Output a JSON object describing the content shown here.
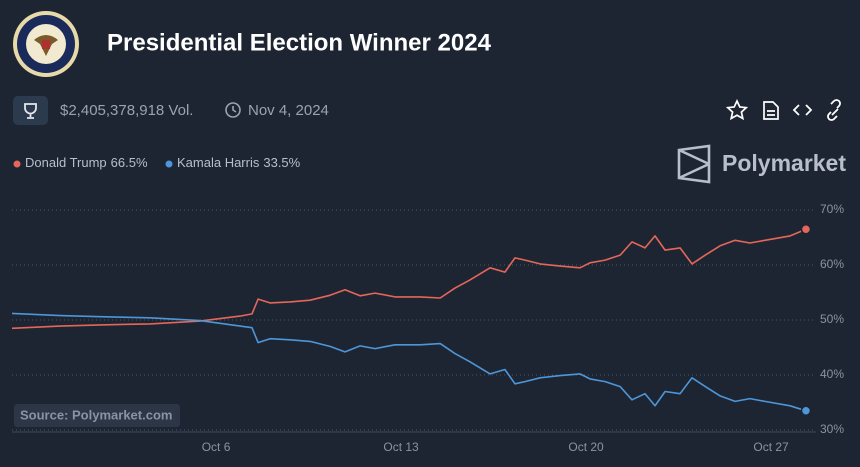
{
  "header": {
    "title": "Presidential Election Winner 2024",
    "volume": "$2,405,378,918 Vol.",
    "date": "Nov 4, 2024",
    "brand": "Polymarket"
  },
  "chart_data": {
    "type": "line",
    "source": "Source: Polymarket.com",
    "x": [
      -1.72,
      0.1,
      1.61,
      3.5,
      5.39,
      6.91,
      7.36,
      7.59,
      8.04,
      8.8,
      9.56,
      10.31,
      10.88,
      11.45,
      12.02,
      12.77,
      13.72,
      14.48,
      15.04,
      15.61,
      16.37,
      16.93,
      17.31,
      17.69,
      18.26,
      19.02,
      19.77,
      20.15,
      20.72,
      21.29,
      21.74,
      22.23,
      22.61,
      22.99,
      23.56,
      24.01,
      24.51,
      25.07,
      25.64,
      26.2,
      26.77,
      27.72,
      28.32
    ],
    "series": [
      {
        "name": "Donald Trump",
        "latest_label": "66.5%",
        "color": "#e4675a",
        "values": [
          48.5,
          48.9,
          49.1,
          49.3,
          49.8,
          50.7,
          51.1,
          53.8,
          53.1,
          53.3,
          53.6,
          54.5,
          55.5,
          54.4,
          54.9,
          54.2,
          54.2,
          54.0,
          55.8,
          57.3,
          59.5,
          58.7,
          61.3,
          60.9,
          60.2,
          59.8,
          59.5,
          60.4,
          60.9,
          61.8,
          64.2,
          63.1,
          65.3,
          62.7,
          63.1,
          60.2,
          61.8,
          63.5,
          64.5,
          64.0,
          64.5,
          65.3,
          66.5
        ]
      },
      {
        "name": "Kamala Harris",
        "latest_label": "33.5%",
        "color": "#4e96d8",
        "values": [
          51.2,
          50.8,
          50.6,
          50.4,
          49.9,
          48.9,
          48.6,
          45.9,
          46.6,
          46.4,
          46.1,
          45.2,
          44.2,
          45.3,
          44.8,
          45.5,
          45.5,
          45.7,
          43.9,
          42.4,
          40.2,
          41.0,
          38.4,
          38.8,
          39.5,
          39.9,
          40.2,
          39.3,
          38.8,
          37.9,
          35.5,
          36.6,
          34.4,
          37.0,
          36.6,
          39.5,
          37.9,
          36.2,
          35.2,
          35.7,
          35.2,
          34.4,
          33.5
        ]
      }
    ],
    "xlim": [
      -1.72,
      28.7
    ],
    "xticks": [
      {
        "value": 6,
        "label": "Oct 6"
      },
      {
        "value": 13,
        "label": "Oct 13"
      },
      {
        "value": 20,
        "label": "Oct 20"
      },
      {
        "value": 27,
        "label": "Oct 27"
      }
    ],
    "ylim": [
      30,
      70
    ],
    "yticks": [
      {
        "value": 30,
        "label": "30%"
      },
      {
        "value": 40,
        "label": "40%"
      },
      {
        "value": 50,
        "label": "50%"
      },
      {
        "value": 60,
        "label": "60%"
      },
      {
        "value": 70,
        "label": "70%"
      }
    ],
    "grid": true
  }
}
